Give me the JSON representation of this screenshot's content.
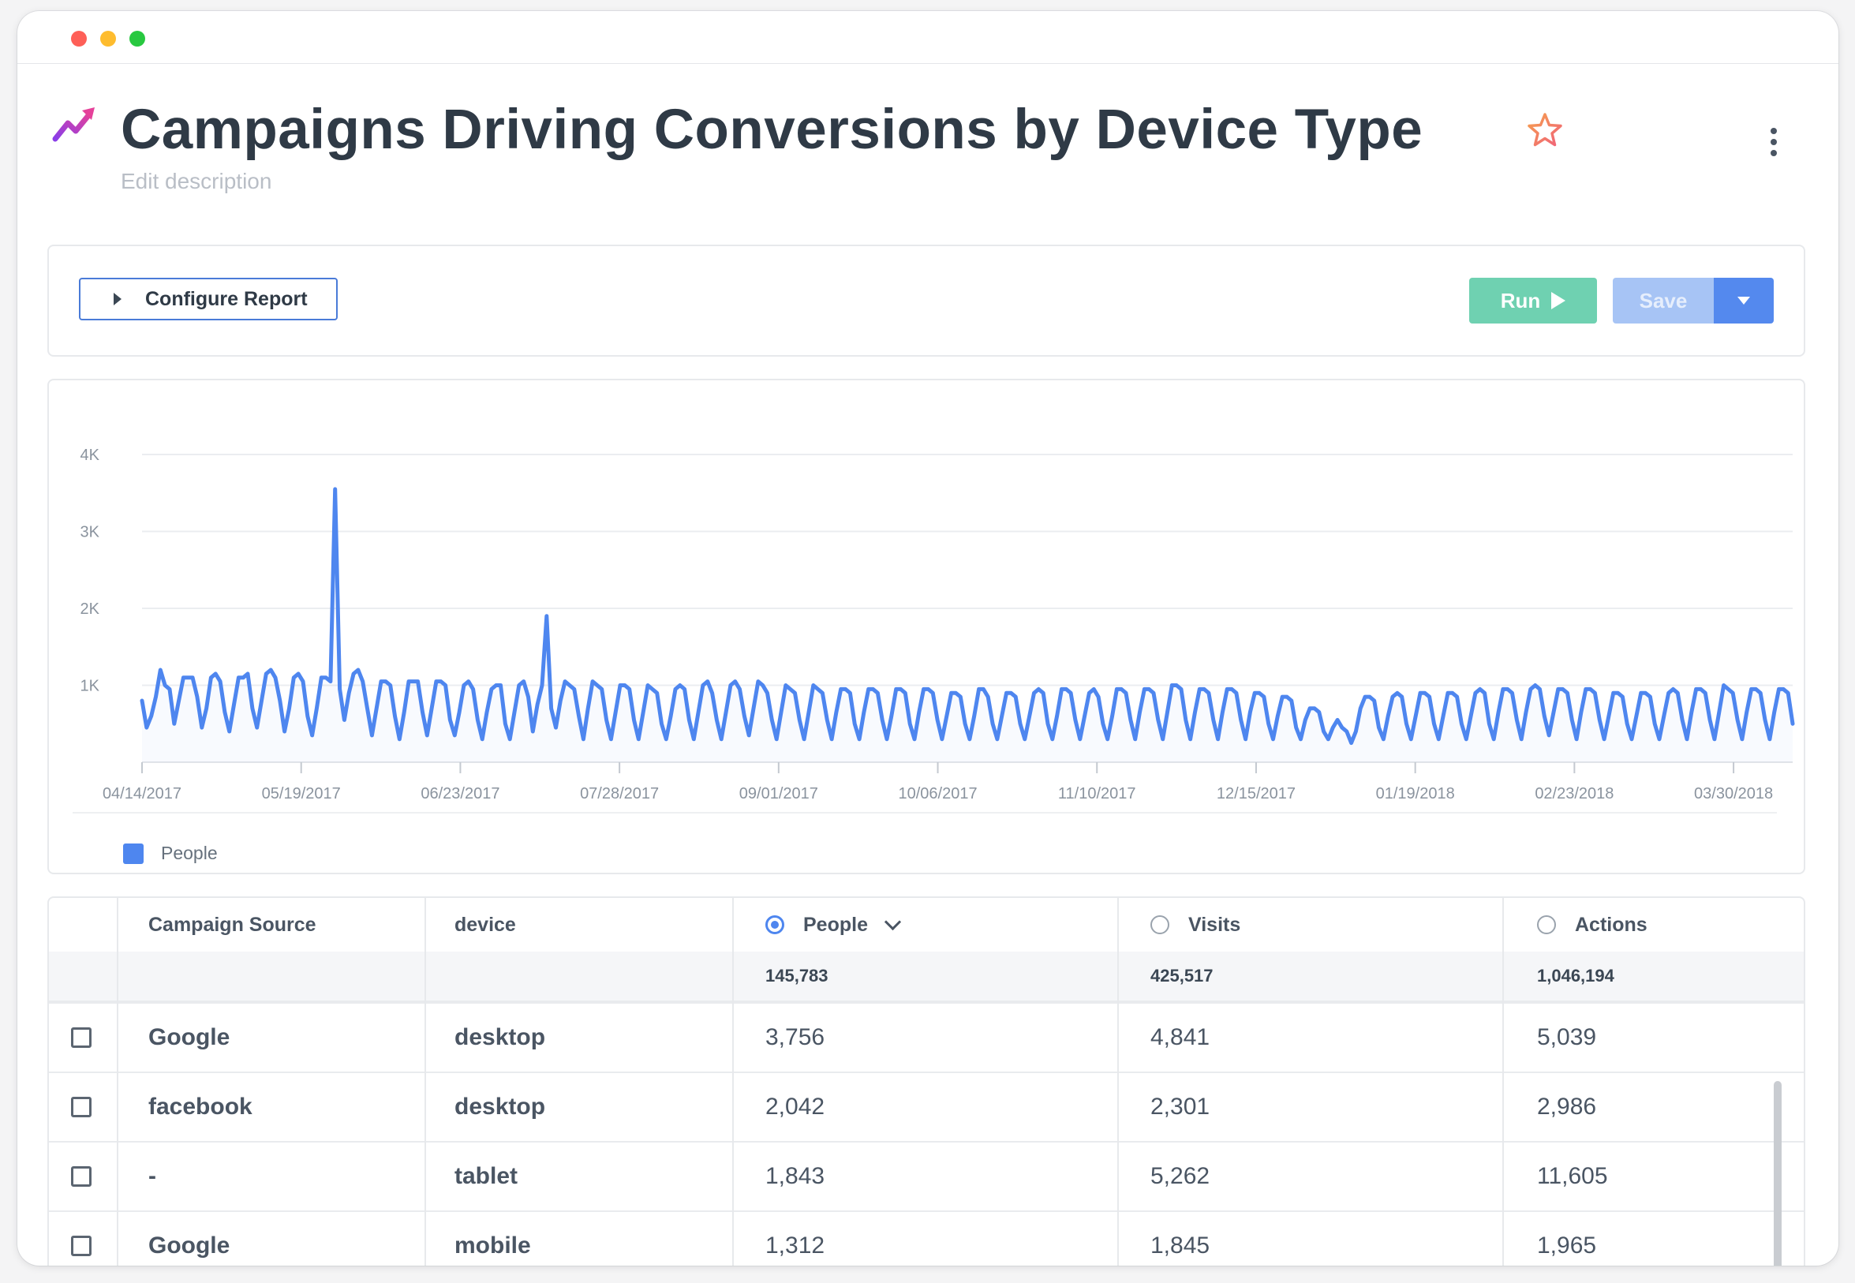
{
  "window": {
    "controls": [
      "close",
      "minimize",
      "maximize"
    ]
  },
  "report": {
    "title": "Campaigns Driving Conversions by Device Type",
    "description_placeholder": "Edit description",
    "icon": "trend-arrow-icon",
    "favorite_icon": "star-outline-icon"
  },
  "toolbar": {
    "configure_label": "Configure Report",
    "run_label": "Run",
    "save_label": "Save"
  },
  "colors": {
    "series": "#4e86ef",
    "run": "#6fd1b1",
    "save": "#a7c4f5",
    "save_dropdown": "#5489ee"
  },
  "chart_data": {
    "type": "line",
    "title": "",
    "xlabel": "",
    "ylabel": "",
    "x_ticks": [
      "04/14/2017",
      "05/19/2017",
      "06/23/2017",
      "07/28/2017",
      "09/01/2017",
      "10/06/2017",
      "11/10/2017",
      "12/15/2017",
      "01/19/2018",
      "02/23/2018",
      "03/30/2018"
    ],
    "x_range": [
      "2017-04-14",
      "2018-04-12"
    ],
    "y_ticks": [
      "1K",
      "2K",
      "3K",
      "4K"
    ],
    "ylim": [
      0,
      4000
    ],
    "grid": true,
    "legend_position": "bottom-left",
    "series": [
      {
        "name": "People",
        "color": "#4e86ef",
        "values": [
          800,
          450,
          600,
          850,
          1200,
          1000,
          950,
          500,
          800,
          1100,
          1100,
          1100,
          850,
          450,
          700,
          1100,
          1150,
          1050,
          650,
          400,
          750,
          1100,
          1100,
          1150,
          700,
          450,
          800,
          1150,
          1200,
          1100,
          800,
          400,
          700,
          1100,
          1150,
          1050,
          600,
          350,
          700,
          1100,
          1100,
          1050,
          3550,
          950,
          550,
          900,
          1150,
          1200,
          1050,
          700,
          350,
          700,
          1050,
          1050,
          1000,
          600,
          300,
          650,
          1050,
          1050,
          1050,
          650,
          350,
          700,
          1050,
          1050,
          1000,
          550,
          350,
          650,
          1000,
          1050,
          950,
          550,
          300,
          650,
          950,
          1000,
          1000,
          500,
          300,
          650,
          1000,
          1050,
          850,
          400,
          750,
          1000,
          1900,
          700,
          450,
          800,
          1050,
          1000,
          950,
          600,
          300,
          700,
          1050,
          1000,
          950,
          550,
          300,
          650,
          1000,
          1000,
          950,
          550,
          300,
          650,
          1000,
          950,
          900,
          500,
          300,
          600,
          950,
          1000,
          950,
          550,
          300,
          650,
          1000,
          1050,
          900,
          550,
          300,
          650,
          1000,
          1050,
          950,
          600,
          350,
          700,
          1050,
          1000,
          900,
          550,
          300,
          650,
          1000,
          950,
          900,
          550,
          300,
          650,
          1000,
          950,
          900,
          550,
          300,
          650,
          950,
          950,
          900,
          500,
          300,
          650,
          950,
          950,
          900,
          550,
          300,
          600,
          950,
          950,
          900,
          500,
          300,
          650,
          950,
          950,
          900,
          550,
          300,
          600,
          900,
          900,
          850,
          500,
          300,
          600,
          950,
          950,
          850,
          500,
          300,
          600,
          900,
          900,
          850,
          500,
          300,
          600,
          900,
          950,
          900,
          500,
          300,
          600,
          950,
          950,
          900,
          550,
          300,
          600,
          900,
          950,
          850,
          500,
          300,
          600,
          950,
          950,
          900,
          550,
          300,
          650,
          950,
          950,
          900,
          550,
          300,
          650,
          1000,
          1000,
          950,
          550,
          300,
          650,
          950,
          950,
          900,
          550,
          300,
          650,
          950,
          950,
          900,
          550,
          300,
          650,
          900,
          900,
          850,
          500,
          300,
          600,
          850,
          850,
          800,
          450,
          300,
          550,
          700,
          700,
          650,
          400,
          300,
          450,
          550,
          450,
          400,
          250,
          400,
          700,
          850,
          850,
          800,
          450,
          300,
          600,
          850,
          900,
          850,
          500,
          300,
          600,
          900,
          900,
          850,
          500,
          300,
          600,
          900,
          900,
          850,
          500,
          300,
          600,
          900,
          950,
          900,
          500,
          300,
          650,
          950,
          950,
          900,
          550,
          300,
          650,
          950,
          1000,
          950,
          600,
          350,
          650,
          950,
          950,
          900,
          550,
          300,
          650,
          950,
          950,
          900,
          550,
          300,
          600,
          900,
          900,
          850,
          500,
          300,
          600,
          900,
          900,
          850,
          500,
          300,
          600,
          900,
          950,
          900,
          550,
          300,
          650,
          950,
          950,
          900,
          550,
          300,
          650,
          1000,
          950,
          900,
          550,
          300,
          650,
          950,
          950,
          900,
          550,
          300,
          650,
          950,
          950,
          900,
          500
        ]
      }
    ]
  },
  "table": {
    "columns": {
      "campaign_source": "Campaign Source",
      "device": "device",
      "people": "People",
      "visits": "Visits",
      "actions": "Actions"
    },
    "sorted_by": "People",
    "totals": {
      "people": "145,783",
      "visits": "425,517",
      "actions": "1,046,194"
    },
    "rows": [
      {
        "campaign_source": "Google",
        "device": "desktop",
        "people": "3,756",
        "visits": "4,841",
        "actions": "5,039"
      },
      {
        "campaign_source": "facebook",
        "device": "desktop",
        "people": "2,042",
        "visits": "2,301",
        "actions": "2,986"
      },
      {
        "campaign_source": "-",
        "device": "tablet",
        "people": "1,843",
        "visits": "5,262",
        "actions": "11,605"
      },
      {
        "campaign_source": "Google",
        "device": "mobile",
        "people": "1,312",
        "visits": "1,845",
        "actions": "1,965"
      }
    ]
  }
}
